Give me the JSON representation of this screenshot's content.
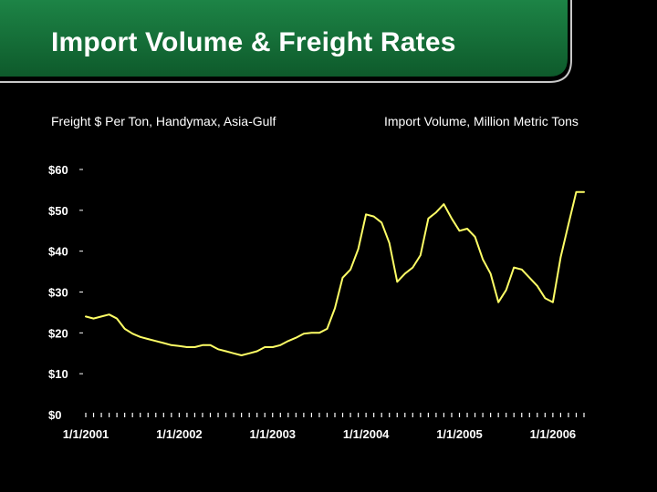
{
  "slide": {
    "title": "Import Volume & Freight Rates"
  },
  "colors": {
    "background": "#000000",
    "header_green": "#1b7a3f",
    "header_green_dark": "#0f5a2c",
    "line": "#ffff66",
    "text": "#ffffff"
  },
  "chart_data": {
    "type": "line",
    "left_axis_title": "Freight $ Per Ton, Handymax, Asia-Gulf",
    "right_axis_title": "Import Volume, Million Metric Tons",
    "xlabel": "",
    "ylabel": "",
    "y_ticks": [
      "$0",
      "$10",
      "$20",
      "$30",
      "$40",
      "$50",
      "$60"
    ],
    "y_tick_values": [
      0,
      10,
      20,
      30,
      40,
      50,
      60
    ],
    "ylim": [
      0,
      60
    ],
    "x_ticks": [
      "1/1/2001",
      "1/1/2002",
      "1/1/2003",
      "1/1/2004",
      "1/1/2005",
      "1/1/2006"
    ],
    "x_tick_months": [
      0,
      12,
      24,
      36,
      48,
      60
    ],
    "xlim_months": [
      0,
      64
    ],
    "grid": false,
    "legend": "none",
    "series": [
      {
        "x_months": [
          0,
          1,
          2,
          3,
          4,
          5,
          6,
          7,
          8,
          9,
          10,
          11,
          12,
          13,
          14,
          15,
          16,
          17,
          18,
          19,
          20,
          21,
          22,
          23,
          24,
          25,
          26,
          27,
          28,
          29,
          30,
          31,
          32,
          33,
          34,
          35,
          36,
          37,
          38,
          39,
          40,
          41,
          42,
          43,
          44,
          45,
          46,
          47,
          48,
          49,
          50,
          51,
          52,
          53,
          54,
          55,
          56,
          57,
          58,
          59,
          60,
          61,
          62,
          63,
          64
        ],
        "values": [
          24,
          23.5,
          24,
          24.5,
          23.5,
          21,
          19.8,
          19,
          18.5,
          18,
          17.5,
          17,
          16.8,
          16.5,
          16.5,
          17,
          17,
          16,
          15.5,
          15,
          14.5,
          15,
          15.5,
          16.5,
          16.5,
          17,
          18,
          18.8,
          19.8,
          20,
          20,
          21,
          26,
          33.5,
          35.5,
          40.5,
          49,
          48.5,
          47,
          42,
          32.5,
          34.5,
          36,
          39,
          48,
          49.5,
          51.5,
          48,
          45,
          45.5,
          43.5,
          38,
          34.5,
          27.5,
          30.5,
          36,
          35.5,
          33.5,
          31.5,
          28.5,
          27.5,
          38.5,
          46.5,
          54.5,
          54.5
        ]
      }
    ]
  }
}
